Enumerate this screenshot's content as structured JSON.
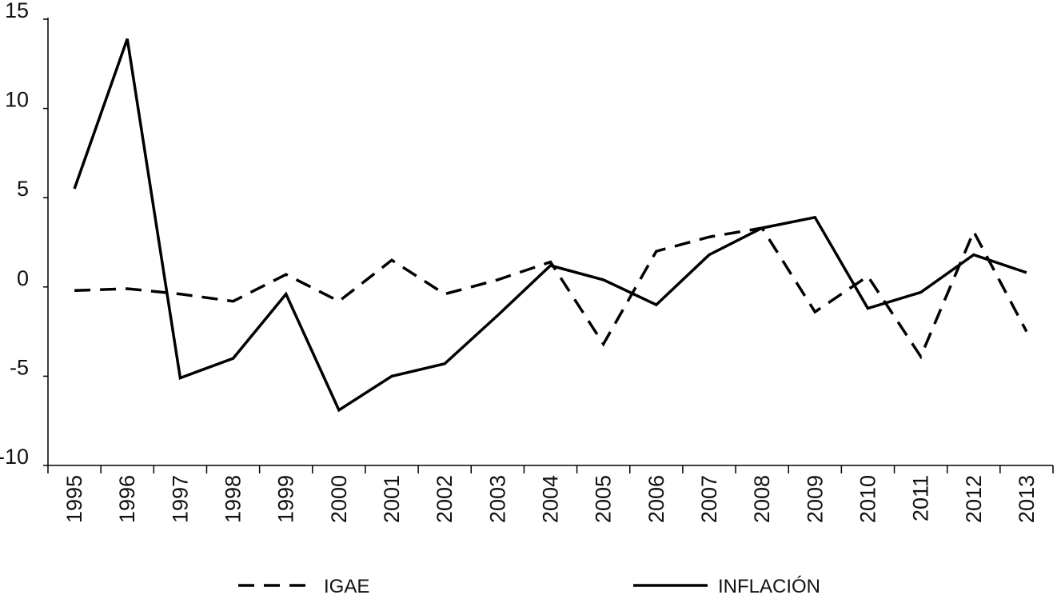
{
  "chart_data": {
    "type": "line",
    "categories": [
      "1995",
      "1996",
      "1997",
      "1998",
      "1999",
      "2000",
      "2001",
      "2002",
      "2003",
      "2004",
      "2005",
      "2006",
      "2007",
      "2008",
      "2009",
      "2010",
      "2011",
      "2012",
      "2013"
    ],
    "yticks": [
      "15",
      "10",
      "5",
      "0",
      "-5",
      "-10"
    ],
    "ylim": [
      -10,
      15
    ],
    "series": [
      {
        "name": "IGAE",
        "style": "dashed",
        "color": "#000000",
        "values": [
          -0.2,
          -0.1,
          -0.4,
          -0.8,
          0.7,
          -0.8,
          1.5,
          -0.4,
          0.4,
          1.4,
          -3.2,
          2.0,
          2.8,
          3.3,
          -1.4,
          0.6,
          -3.9,
          3.1,
          -2.5
        ]
      },
      {
        "name": "INFLACIÓN",
        "style": "solid",
        "color": "#000000",
        "values": [
          5.5,
          13.9,
          -5.1,
          -4.0,
          -0.4,
          -6.9,
          -5.0,
          -4.3,
          -1.6,
          1.2,
          0.4,
          -1.0,
          1.8,
          3.3,
          3.9,
          -1.2,
          -0.3,
          1.8,
          0.8
        ]
      }
    ],
    "legend": "bottom",
    "grid": false
  }
}
